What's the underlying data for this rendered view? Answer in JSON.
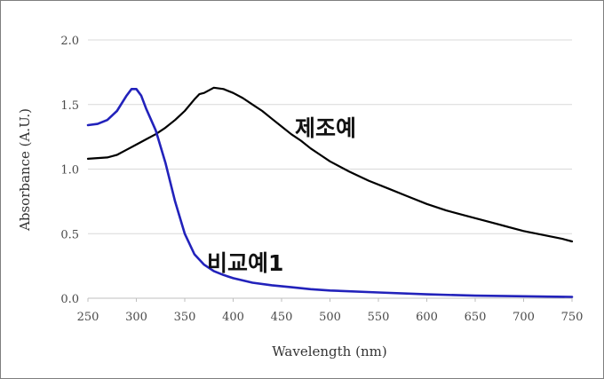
{
  "chart_data": {
    "type": "line",
    "xlabel": "Wavelength (nm)",
    "ylabel": "Absorbance (A.U.)",
    "xlim": [
      250,
      750
    ],
    "ylim": [
      0,
      2
    ],
    "xticks": [
      "250",
      "300",
      "350",
      "400",
      "450",
      "500",
      "550",
      "600",
      "650",
      "700",
      "750"
    ],
    "yticks": [
      "0.0",
      "0.5",
      "1.0",
      "1.5",
      "2.0"
    ],
    "grid": "horizontal",
    "series": [
      {
        "name": "제조예",
        "color": "#000000",
        "points": [
          [
            250,
            1.08
          ],
          [
            270,
            1.09
          ],
          [
            280,
            1.11
          ],
          [
            290,
            1.15
          ],
          [
            300,
            1.19
          ],
          [
            310,
            1.23
          ],
          [
            320,
            1.27
          ],
          [
            330,
            1.32
          ],
          [
            340,
            1.38
          ],
          [
            350,
            1.45
          ],
          [
            360,
            1.54
          ],
          [
            365,
            1.58
          ],
          [
            370,
            1.59
          ],
          [
            380,
            1.63
          ],
          [
            390,
            1.62
          ],
          [
            400,
            1.59
          ],
          [
            410,
            1.55
          ],
          [
            420,
            1.5
          ],
          [
            430,
            1.45
          ],
          [
            440,
            1.39
          ],
          [
            450,
            1.33
          ],
          [
            460,
            1.27
          ],
          [
            470,
            1.22
          ],
          [
            480,
            1.16
          ],
          [
            490,
            1.11
          ],
          [
            500,
            1.06
          ],
          [
            520,
            0.98
          ],
          [
            540,
            0.91
          ],
          [
            560,
            0.85
          ],
          [
            580,
            0.79
          ],
          [
            600,
            0.73
          ],
          [
            620,
            0.68
          ],
          [
            640,
            0.64
          ],
          [
            660,
            0.6
          ],
          [
            680,
            0.56
          ],
          [
            700,
            0.52
          ],
          [
            720,
            0.49
          ],
          [
            740,
            0.46
          ],
          [
            750,
            0.44
          ]
        ]
      },
      {
        "name": "비교예1",
        "color": "#2222bb",
        "points": [
          [
            250,
            1.34
          ],
          [
            260,
            1.35
          ],
          [
            270,
            1.38
          ],
          [
            280,
            1.45
          ],
          [
            290,
            1.57
          ],
          [
            295,
            1.62
          ],
          [
            300,
            1.62
          ],
          [
            305,
            1.57
          ],
          [
            310,
            1.47
          ],
          [
            320,
            1.3
          ],
          [
            330,
            1.05
          ],
          [
            340,
            0.75
          ],
          [
            350,
            0.5
          ],
          [
            360,
            0.34
          ],
          [
            370,
            0.26
          ],
          [
            380,
            0.21
          ],
          [
            390,
            0.18
          ],
          [
            400,
            0.155
          ],
          [
            420,
            0.12
          ],
          [
            440,
            0.1
          ],
          [
            460,
            0.085
          ],
          [
            480,
            0.07
          ],
          [
            500,
            0.06
          ],
          [
            550,
            0.045
          ],
          [
            600,
            0.03
          ],
          [
            650,
            0.02
          ],
          [
            700,
            0.015
          ],
          [
            750,
            0.01
          ]
        ]
      }
    ]
  }
}
